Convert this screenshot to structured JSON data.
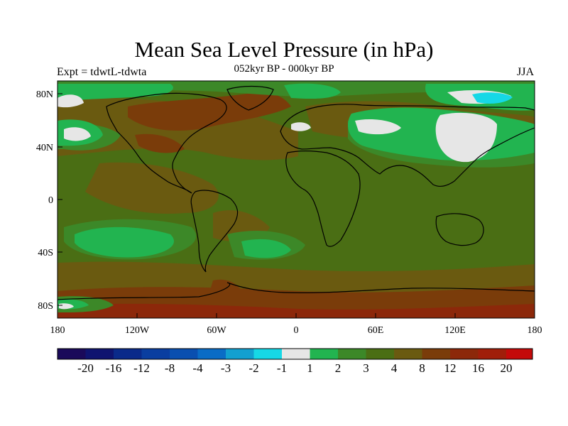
{
  "title": "Mean Sea Level Pressure (in hPa)",
  "subtitle": "052kyr BP - 000kyr BP",
  "left_label": "Expt = tdwtL-tdwta",
  "right_label": "JJA",
  "x_ticks": [
    "180",
    "120W",
    "60W",
    "0",
    "60E",
    "120E",
    "180"
  ],
  "y_ticks": [
    "80N",
    "40N",
    "0",
    "40S",
    "80S"
  ],
  "colorbar": {
    "colors": [
      "#1a0a5a",
      "#0f1470",
      "#0a2a8a",
      "#0a3ea0",
      "#0a4fb0",
      "#0a6cc6",
      "#12a0d0",
      "#16d8e6",
      "#e6e6e6",
      "#22b450",
      "#3c8828",
      "#4a6e14",
      "#6a5a10",
      "#7a3c0a",
      "#8c280a",
      "#a01e0a",
      "#c40a0a"
    ],
    "labels": [
      "-20",
      "-16",
      "-12",
      "-8",
      "-4",
      "-3",
      "-2",
      "-1",
      "1",
      "2",
      "3",
      "4",
      "8",
      "12",
      "16",
      "20"
    ]
  }
}
